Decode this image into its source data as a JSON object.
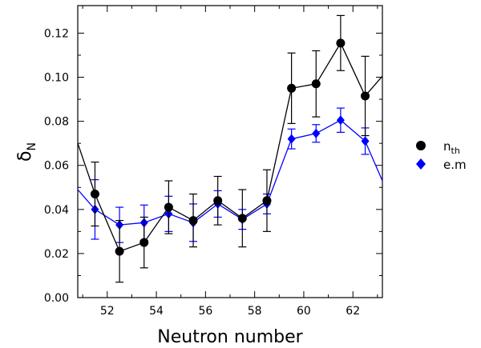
{
  "chart_data": {
    "type": "line",
    "title": "",
    "xlabel": "Neutron number",
    "ylabel": "δN",
    "ylabel_main": "δ",
    "ylabel_sub": "N",
    "xlim": [
      50.8,
      63.2
    ],
    "ylim": [
      0.0,
      0.1325
    ],
    "xticks": [
      52,
      54,
      56,
      58,
      60,
      62
    ],
    "yticks": [
      0.0,
      0.02,
      0.04,
      0.06,
      0.08,
      0.1,
      0.12
    ],
    "xtick_labels": [
      "52",
      "54",
      "56",
      "58",
      "60",
      "62"
    ],
    "ytick_labels": [
      "0.00",
      "0.02",
      "0.04",
      "0.06",
      "0.08",
      "0.10",
      "0.12"
    ],
    "grid": false,
    "legend_position": "right, outside plot",
    "series": [
      {
        "name": "nth",
        "name_main": "n",
        "name_sub": "th",
        "color": "#000000",
        "marker": "circle",
        "line_from": [
          50.8,
          0.07
        ],
        "line_to": [
          63.2,
          0.1005
        ],
        "x": [
          51.5,
          52.5,
          53.5,
          54.5,
          55.5,
          56.5,
          57.5,
          58.5,
          59.5,
          60.5,
          61.5,
          62.5
        ],
        "y": [
          0.047,
          0.021,
          0.025,
          0.041,
          0.035,
          0.044,
          0.036,
          0.044,
          0.095,
          0.097,
          0.1155,
          0.0915
        ],
        "err": [
          0.0145,
          0.014,
          0.0115,
          0.012,
          0.012,
          0.011,
          0.013,
          0.014,
          0.016,
          0.015,
          0.0125,
          0.018
        ]
      },
      {
        "name": "e.m",
        "name_main": "e.m",
        "name_sub": "",
        "color": "#0000ff",
        "marker": "diamond",
        "line_from": [
          50.8,
          0.049
        ],
        "line_to": [
          63.2,
          0.053
        ],
        "x": [
          51.5,
          52.5,
          53.5,
          54.5,
          55.5,
          56.5,
          57.5,
          58.5,
          59.5,
          60.5,
          61.5,
          62.5
        ],
        "y": [
          0.04,
          0.033,
          0.034,
          0.038,
          0.034,
          0.0425,
          0.0355,
          0.0425,
          0.072,
          0.0745,
          0.0805,
          0.071
        ],
        "err": [
          0.0135,
          0.008,
          0.008,
          0.008,
          0.0085,
          0.006,
          0.0045,
          0.0045,
          0.0045,
          0.004,
          0.0055,
          0.006
        ]
      }
    ]
  }
}
